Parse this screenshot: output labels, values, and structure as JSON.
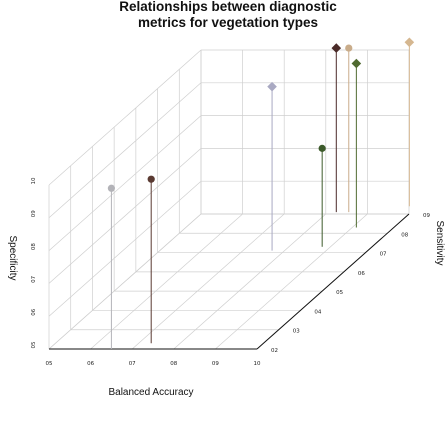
{
  "chart_data": {
    "type": "scatter3d",
    "title": [
      "Relationships between diagnostic",
      "metrics for vegetation types"
    ],
    "xlabel": "Balanced Accuracy",
    "ylabel": "Sensitivity",
    "zlabel": "Specificity",
    "xticks": [
      "05",
      "06",
      "07",
      "08",
      "09",
      "10"
    ],
    "yticks": [
      "02",
      "03",
      "04",
      "05",
      "06",
      "07",
      "08",
      "09"
    ],
    "zticks": [
      "05",
      "06",
      "07",
      "08",
      "09",
      "10"
    ],
    "xlim": [
      0.5,
      1.0
    ],
    "ylim": [
      0.2,
      0.9
    ],
    "zlim": [
      0.5,
      1.0
    ],
    "grid": true,
    "points": [
      {
        "x": 0.65,
        "y": 0.2,
        "z": 0.99,
        "shape": "circle",
        "color": "#b3b3b8"
      },
      {
        "x": 0.73,
        "y": 0.23,
        "z": 1.0,
        "shape": "circle",
        "color": "#5a3a32"
      },
      {
        "x": 0.77,
        "y": 0.71,
        "z": 1.0,
        "shape": "diamond",
        "color": "#a9a9c2"
      },
      {
        "x": 0.82,
        "y": 0.91,
        "z": 1.0,
        "shape": "diamond",
        "color": "#4a2a28"
      },
      {
        "x": 0.85,
        "y": 0.91,
        "z": 1.0,
        "shape": "circle",
        "color": "#c9ac8a"
      },
      {
        "x": 0.88,
        "y": 0.73,
        "z": 0.8,
        "shape": "circle",
        "color": "#3c5a2a"
      },
      {
        "x": 0.91,
        "y": 0.83,
        "z": 1.0,
        "shape": "diamond",
        "color": "#4f6a30"
      },
      {
        "x": 0.98,
        "y": 0.94,
        "z": 1.0,
        "shape": "diamond",
        "color": "#d5b790"
      }
    ]
  }
}
